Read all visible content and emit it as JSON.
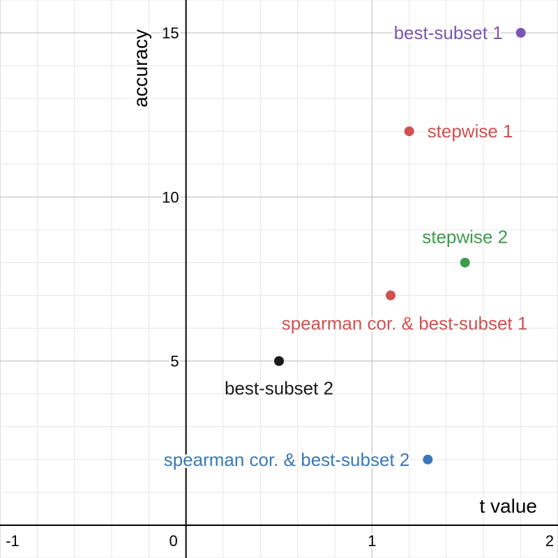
{
  "chart_data": {
    "type": "scatter",
    "title": "",
    "xlabel": "t value",
    "ylabel": "accuracy",
    "xlim": [
      -1,
      2
    ],
    "ylim": [
      -1,
      16
    ],
    "x_ticks": [
      -1,
      0,
      1,
      2
    ],
    "y_ticks": [
      5,
      10,
      15
    ],
    "x_tick_labels": [
      "-1",
      "0",
      "1",
      "2"
    ],
    "y_tick_labels": [
      "5",
      "10",
      "15"
    ],
    "grid": true,
    "legend": false,
    "points": [
      {
        "label": "best-subset 1",
        "x": 1.8,
        "y": 15,
        "color": "#7b55b5",
        "label_anchor": "left"
      },
      {
        "label": "stepwise 1",
        "x": 1.2,
        "y": 12,
        "color": "#d05050",
        "label_anchor": "right"
      },
      {
        "label": "stepwise 2",
        "x": 1.5,
        "y": 8,
        "color": "#3e9b4e",
        "label_anchor": "above"
      },
      {
        "label": "spearman cor. & best-subset 1",
        "x": 1.1,
        "y": 7,
        "color": "#d05050",
        "label_anchor": "below-right"
      },
      {
        "label": "best-subset 2",
        "x": 0.5,
        "y": 5,
        "color": "#1a1a1a",
        "label_anchor": "below"
      },
      {
        "label": "spearman cor. & best-subset 2",
        "x": 1.3,
        "y": 2,
        "color": "#3a78b8",
        "label_anchor": "left"
      }
    ]
  }
}
